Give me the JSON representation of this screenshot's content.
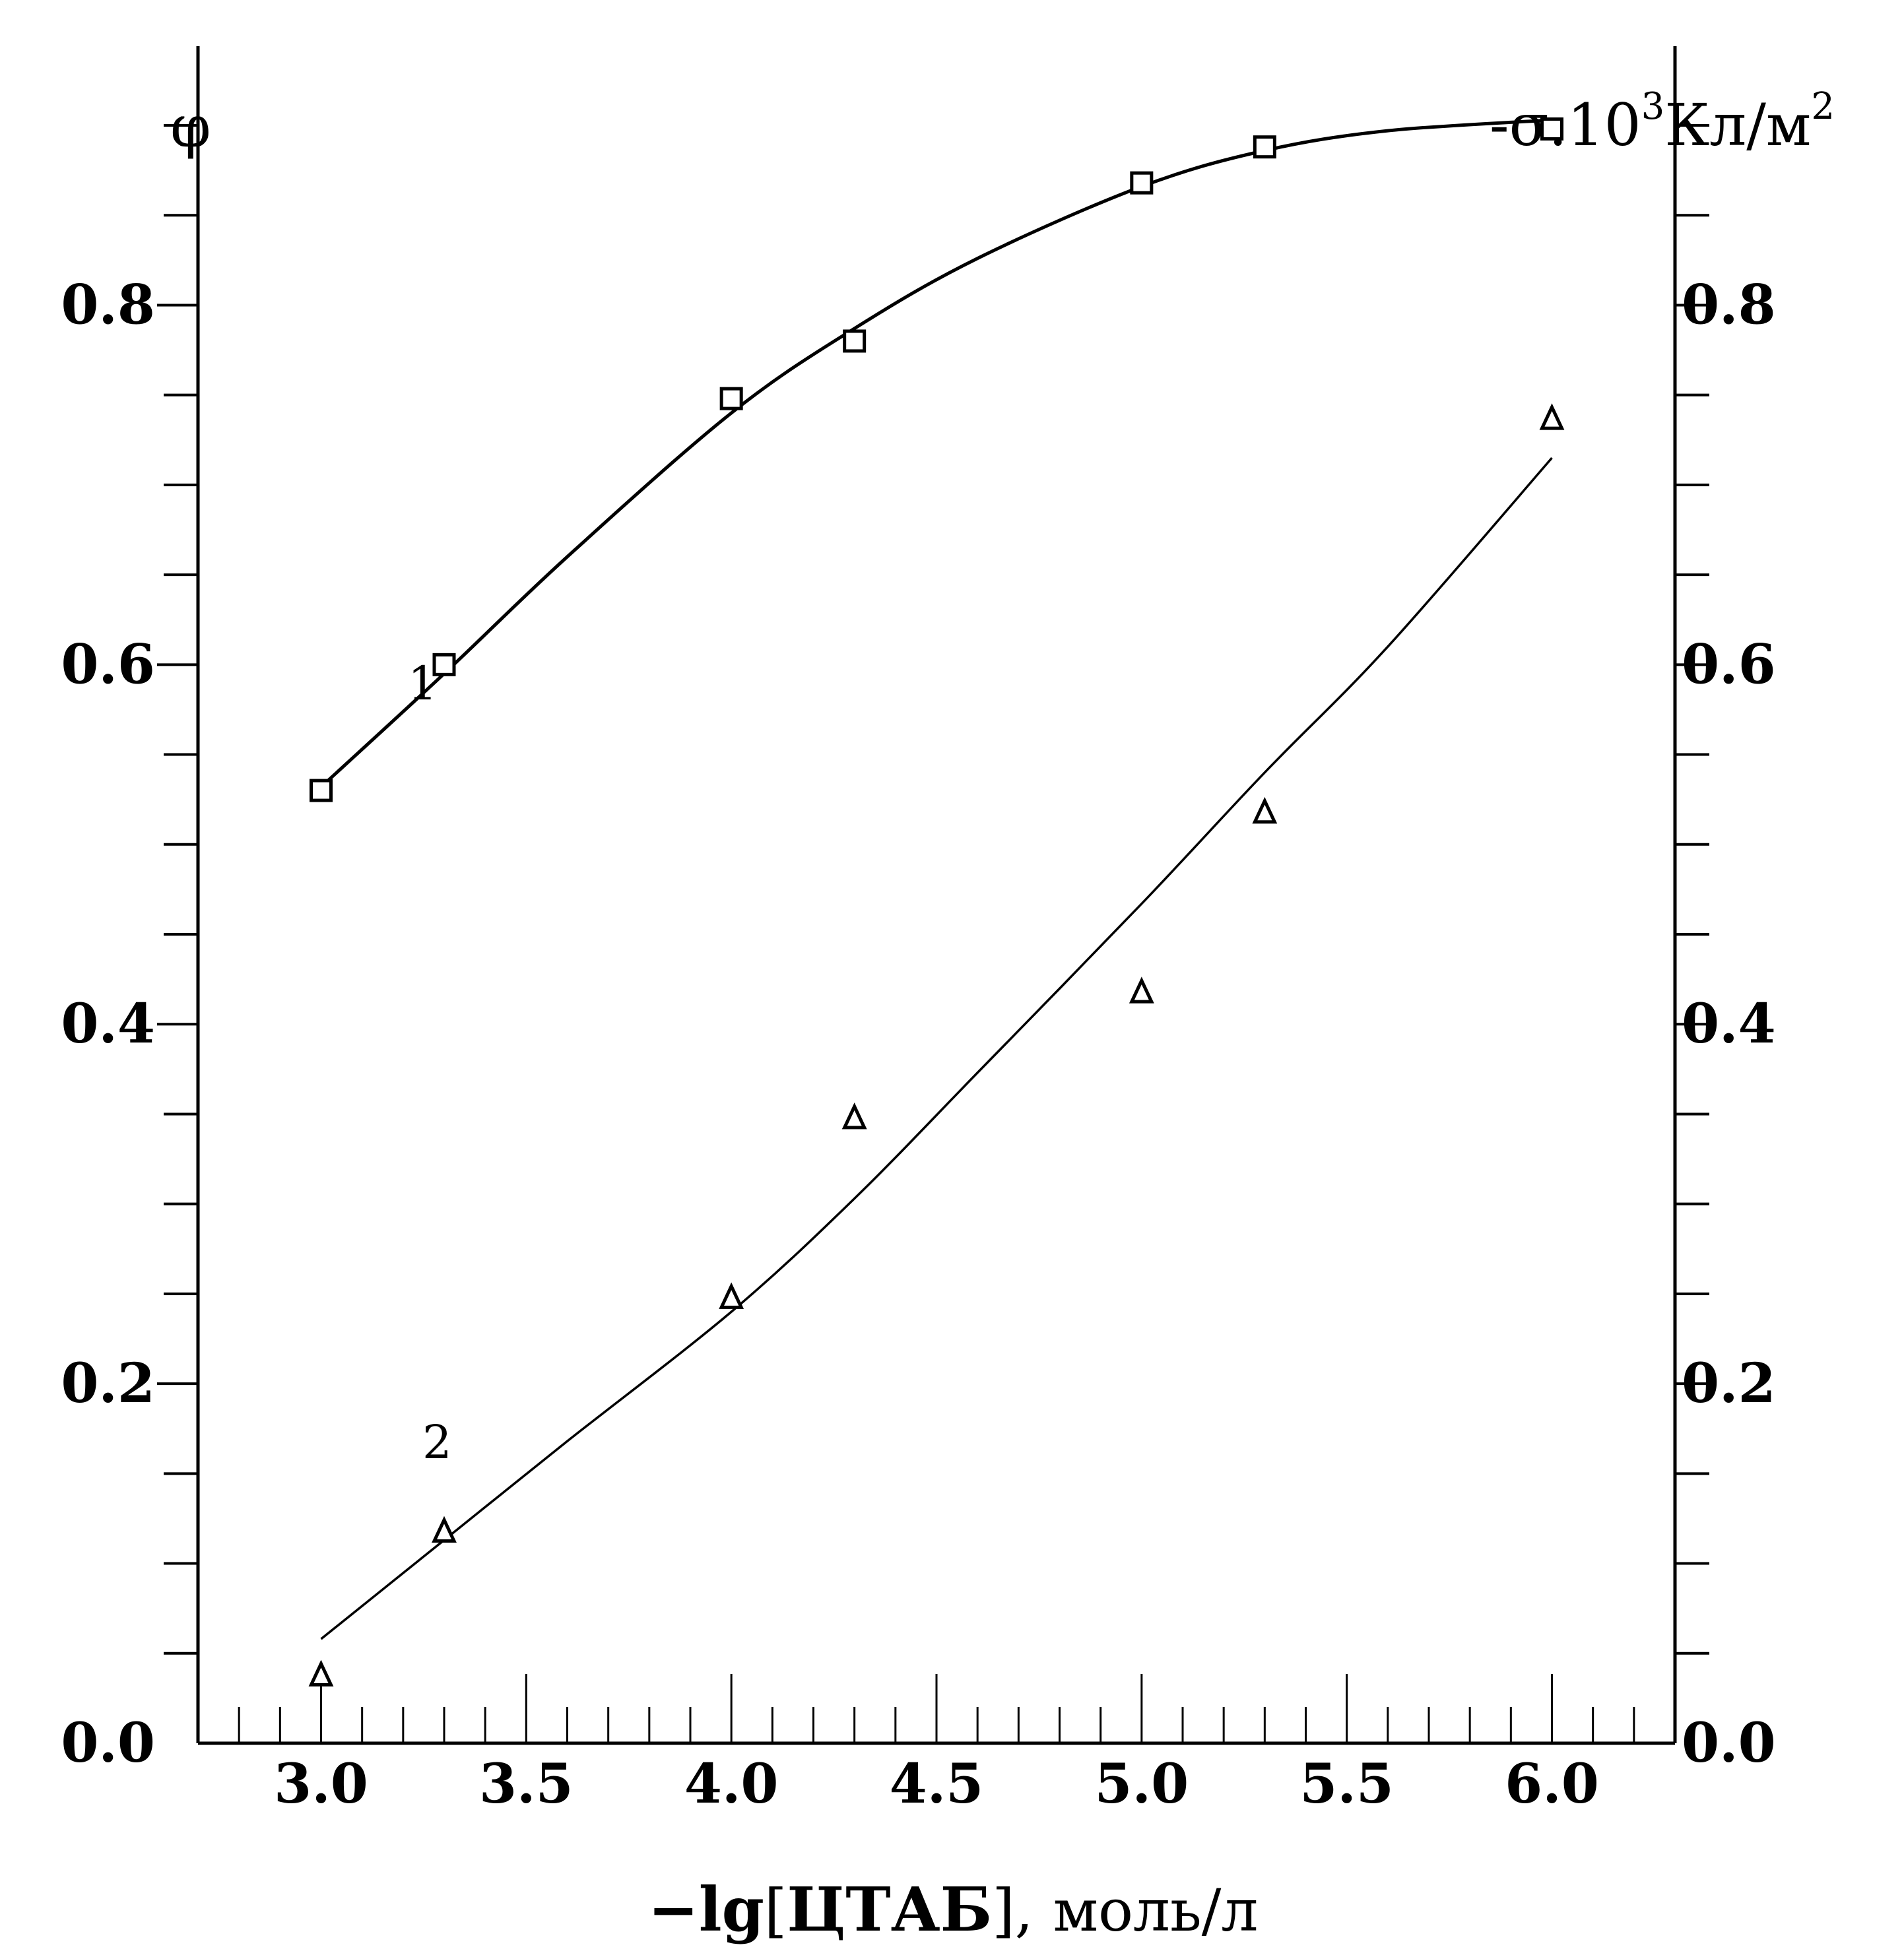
{
  "chart_data": {
    "type": "line",
    "title": "",
    "xlabel_parts": {
      "prefix": "−lg",
      "bracket_open": "[",
      "bracket_text": "ЦТАБ",
      "bracket_close": "],",
      "units": "моль/л"
    },
    "ylabel_left": "φ",
    "ylabel_right_parts": {
      "base": "-σ.10",
      "sup1": "3",
      "unit": "Кл/м",
      "sup2": "2"
    },
    "xlim": [
      2.7,
      6.3
    ],
    "ylim": [
      0.0,
      0.9
    ],
    "x_ticks": [
      "3.0",
      "3.5",
      "4.0",
      "4.5",
      "5.0",
      "5.5",
      "6.0"
    ],
    "y_ticks_left": [
      "0.0",
      "0.2",
      "0.4",
      "0.6",
      "0.8"
    ],
    "y_ticks_right": [
      "0.0",
      "0.2",
      "0.4",
      "0.6",
      "0.8"
    ],
    "grid": false,
    "series": [
      {
        "name": "1",
        "marker": "square",
        "x": [
          3.0,
          3.3,
          4.0,
          4.3,
          5.0,
          5.3,
          6.0
        ],
        "y": [
          0.53,
          0.6,
          0.748,
          0.78,
          0.868,
          0.888,
          0.898
        ],
        "fit_x": [
          3.0,
          3.3,
          3.6,
          4.0,
          4.3,
          4.6,
          5.0,
          5.3,
          5.6,
          6.0
        ],
        "fit_y": [
          0.532,
          0.595,
          0.66,
          0.74,
          0.787,
          0.826,
          0.866,
          0.886,
          0.897,
          0.903
        ]
      },
      {
        "name": "2",
        "marker": "triangle",
        "x": [
          3.0,
          3.3,
          4.0,
          4.3,
          5.0,
          5.3,
          6.0
        ],
        "y": [
          0.038,
          0.118,
          0.248,
          0.348,
          0.418,
          0.518,
          0.737
        ],
        "fit_x": [
          3.0,
          3.3,
          3.6,
          4.0,
          4.3,
          4.6,
          5.0,
          5.3,
          5.6,
          6.0
        ],
        "fit_y": [
          0.058,
          0.113,
          0.168,
          0.24,
          0.303,
          0.373,
          0.467,
          0.54,
          0.61,
          0.715
        ]
      }
    ]
  }
}
